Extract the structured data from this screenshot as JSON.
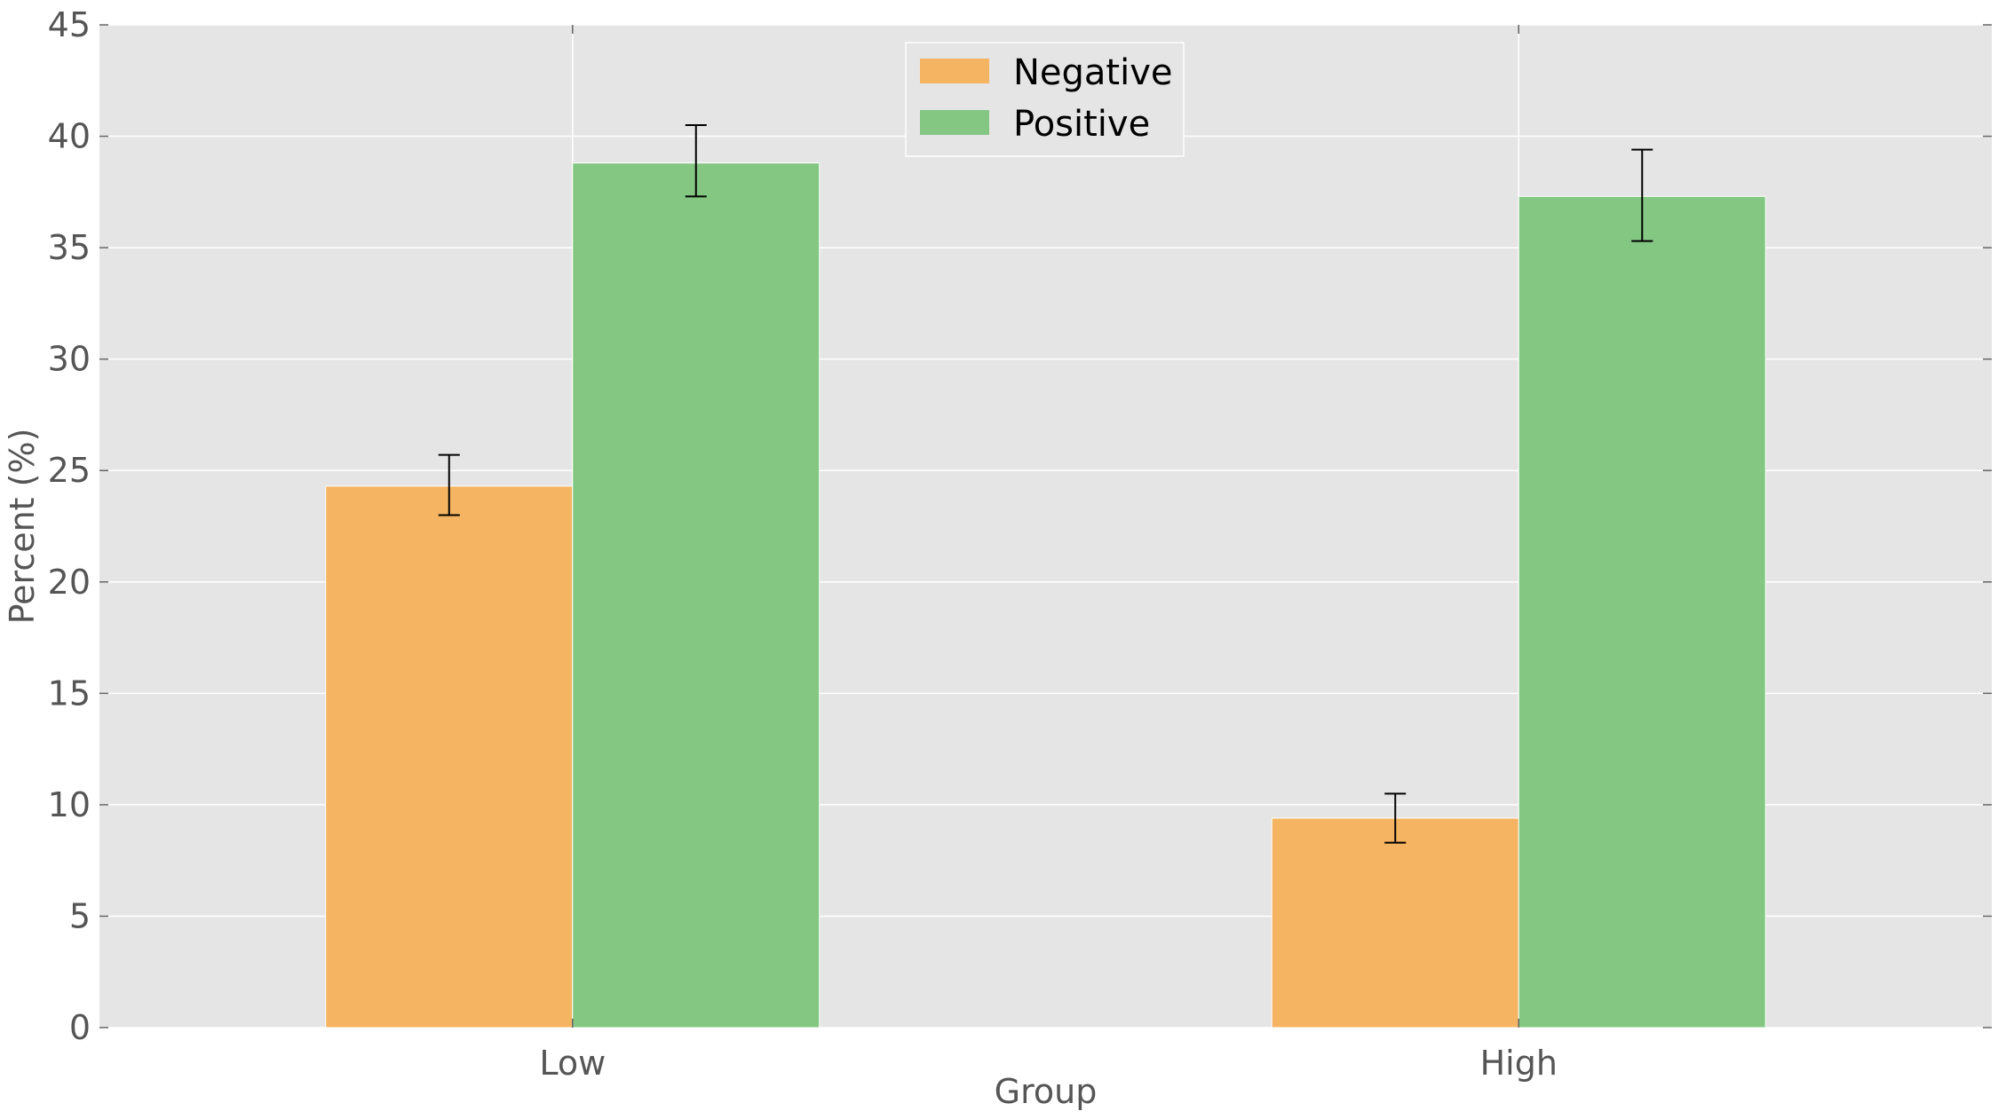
{
  "chart_data": {
    "type": "bar",
    "title": "",
    "xlabel": "Group",
    "ylabel": "Percent (%)",
    "ylim": [
      0,
      45
    ],
    "yticks": [
      0,
      5,
      10,
      15,
      20,
      25,
      30,
      35,
      40,
      45
    ],
    "categories": [
      "Low",
      "High"
    ],
    "series": [
      {
        "name": "Negative",
        "color": "#f5b461",
        "values": [
          24.3,
          9.4
        ],
        "err_low": [
          23.0,
          8.3
        ],
        "err_high": [
          25.7,
          10.5
        ]
      },
      {
        "name": "Positive",
        "color": "#83c783",
        "values": [
          38.8,
          37.3
        ],
        "err_low": [
          37.3,
          35.3
        ],
        "err_high": [
          40.5,
          39.4
        ]
      }
    ],
    "grid": true,
    "legend_position": "top-center",
    "background_color": "#e5e5e5"
  }
}
